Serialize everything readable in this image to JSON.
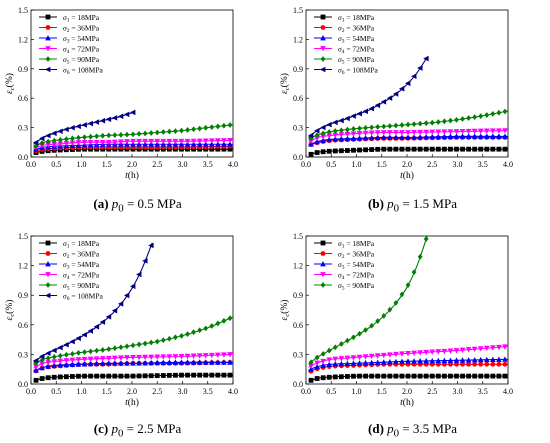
{
  "figure": {
    "captions": [
      {
        "tag": "(a)",
        "param": "p",
        "sub": "0",
        "rest": " = 0.5 MPa"
      },
      {
        "tag": "(b)",
        "param": "p",
        "sub": "0",
        "rest": " = 1.5 MPa"
      },
      {
        "tag": "(c)",
        "param": "p",
        "sub": "0",
        "rest": " = 2.5 MPa"
      },
      {
        "tag": "(d)",
        "param": "p",
        "sub": "0",
        "rest": " = 3.5 MPa"
      }
    ]
  },
  "chart_data": [
    {
      "type": "line",
      "xlabel": "t(h)",
      "ylabel": "εc(%)",
      "xlim": [
        0,
        4
      ],
      "ylim": [
        0,
        1.5
      ],
      "xticks": [
        "0.0",
        "0.5",
        "1.0",
        "1.5",
        "2.0",
        "2.5",
        "3.0",
        "3.5",
        "4.0"
      ],
      "yticks": [
        "0.0",
        "0.3",
        "0.6",
        "0.9",
        "1.2",
        "1.5"
      ],
      "legend": "top-left",
      "series": [
        {
          "name": "σ1 = 18MPa",
          "color": "#000000",
          "marker": "square",
          "x": [
            0.05,
            0.25,
            0.5,
            1,
            1.5,
            2,
            3,
            4
          ],
          "y": [
            0.04,
            0.06,
            0.07,
            0.08,
            0.08,
            0.08,
            0.08,
            0.08
          ]
        },
        {
          "name": "σ2 = 36MPa",
          "color": "#ff0000",
          "marker": "circle",
          "x": [
            0.05,
            0.25,
            0.5,
            1,
            1.5,
            2,
            3,
            4
          ],
          "y": [
            0.06,
            0.08,
            0.09,
            0.1,
            0.1,
            0.1,
            0.1,
            0.11
          ]
        },
        {
          "name": "σ3 = 54MPa",
          "color": "#0000ff",
          "marker": "triangle-up",
          "x": [
            0.05,
            0.25,
            0.5,
            1,
            1.5,
            2,
            3,
            4
          ],
          "y": [
            0.07,
            0.1,
            0.11,
            0.12,
            0.13,
            0.13,
            0.13,
            0.13
          ]
        },
        {
          "name": "σ4 = 72MPa",
          "color": "#ff00ff",
          "marker": "triangle-down",
          "x": [
            0.05,
            0.25,
            0.5,
            1,
            1.5,
            2,
            3,
            4
          ],
          "y": [
            0.09,
            0.12,
            0.13,
            0.15,
            0.15,
            0.16,
            0.16,
            0.17
          ]
        },
        {
          "name": "σ5 = 90MPa",
          "color": "#008000",
          "marker": "diamond",
          "x": [
            0.05,
            0.25,
            0.5,
            1,
            1.5,
            2,
            2.5,
            3,
            3.5,
            4
          ],
          "y": [
            0.1,
            0.15,
            0.17,
            0.2,
            0.22,
            0.23,
            0.25,
            0.27,
            0.3,
            0.33
          ]
        },
        {
          "name": "σ6 = 108MPa",
          "color": "#000080",
          "marker": "triangle-left",
          "x": [
            0.05,
            0.25,
            0.5,
            0.75,
            1,
            1.25,
            1.5,
            1.75,
            2.05
          ],
          "y": [
            0.13,
            0.2,
            0.25,
            0.29,
            0.32,
            0.35,
            0.38,
            0.41,
            0.46
          ]
        }
      ]
    },
    {
      "type": "line",
      "xlabel": "t(h)",
      "ylabel": "εc(%)",
      "xlim": [
        0,
        4
      ],
      "ylim": [
        0,
        1.5
      ],
      "xticks": [
        "0.0",
        "0.5",
        "1.0",
        "1.5",
        "2.0",
        "2.5",
        "3.0",
        "3.5",
        "4.0"
      ],
      "yticks": [
        "0.0",
        "0.3",
        "0.6",
        "0.9",
        "1.2",
        "1.5"
      ],
      "legend": "top-left",
      "series": [
        {
          "name": "σ1 = 18MPa",
          "color": "#000000",
          "marker": "square",
          "x": [
            0.05,
            0.25,
            0.5,
            1,
            1.5,
            2,
            3,
            4
          ],
          "y": [
            0.02,
            0.05,
            0.06,
            0.07,
            0.08,
            0.08,
            0.08,
            0.08
          ]
        },
        {
          "name": "σ2 = 36MPa",
          "color": "#ff0000",
          "marker": "circle",
          "x": [
            0.05,
            0.25,
            0.5,
            1,
            1.5,
            2,
            3,
            4
          ],
          "y": [
            0.12,
            0.15,
            0.17,
            0.18,
            0.19,
            0.19,
            0.2,
            0.2
          ]
        },
        {
          "name": "σ3 = 54MPa",
          "color": "#0000ff",
          "marker": "triangle-up",
          "x": [
            0.05,
            0.25,
            0.5,
            1,
            1.5,
            2,
            3,
            4
          ],
          "y": [
            0.12,
            0.16,
            0.18,
            0.19,
            0.2,
            0.2,
            0.21,
            0.21
          ]
        },
        {
          "name": "σ4 = 72MPa",
          "color": "#ff00ff",
          "marker": "triangle-down",
          "x": [
            0.05,
            0.25,
            0.5,
            1,
            1.5,
            2,
            3,
            4
          ],
          "y": [
            0.15,
            0.2,
            0.22,
            0.24,
            0.25,
            0.25,
            0.26,
            0.27
          ]
        },
        {
          "name": "σ5 = 90MPa",
          "color": "#008000",
          "marker": "diamond",
          "x": [
            0.05,
            0.25,
            0.5,
            1,
            1.5,
            2,
            2.5,
            3,
            3.5,
            4
          ],
          "y": [
            0.18,
            0.23,
            0.26,
            0.29,
            0.31,
            0.33,
            0.35,
            0.38,
            0.42,
            0.47
          ]
        },
        {
          "name": "σ6 = 108MPa",
          "color": "#000080",
          "marker": "triangle-left",
          "x": [
            0.05,
            0.25,
            0.5,
            0.75,
            1,
            1.25,
            1.5,
            1.75,
            2,
            2.2,
            2.4
          ],
          "y": [
            0.2,
            0.28,
            0.34,
            0.38,
            0.43,
            0.48,
            0.55,
            0.63,
            0.74,
            0.86,
            1.02
          ]
        }
      ]
    },
    {
      "type": "line",
      "xlabel": "t(h)",
      "ylabel": "εc(%)",
      "xlim": [
        0,
        4
      ],
      "ylim": [
        0,
        1.5
      ],
      "xticks": [
        "0.0",
        "0.5",
        "1.0",
        "1.5",
        "2.0",
        "2.5",
        "3.0",
        "3.5",
        "4.0"
      ],
      "yticks": [
        "0.0",
        "0.3",
        "0.6",
        "0.9",
        "1.2",
        "1.5"
      ],
      "legend": "top-left",
      "series": [
        {
          "name": "σ1 = 18MPa",
          "color": "#000000",
          "marker": "square",
          "x": [
            0.05,
            0.25,
            0.5,
            1,
            1.5,
            2,
            3,
            4
          ],
          "y": [
            0.03,
            0.06,
            0.07,
            0.08,
            0.08,
            0.08,
            0.09,
            0.09
          ]
        },
        {
          "name": "σ2 = 36MPa",
          "color": "#ff0000",
          "marker": "circle",
          "x": [
            0.05,
            0.25,
            0.5,
            1,
            1.5,
            2,
            3,
            4
          ],
          "y": [
            0.12,
            0.17,
            0.18,
            0.2,
            0.2,
            0.21,
            0.21,
            0.22
          ]
        },
        {
          "name": "σ3 = 54MPa",
          "color": "#0000ff",
          "marker": "triangle-up",
          "x": [
            0.05,
            0.25,
            0.5,
            1,
            1.5,
            2,
            3,
            4
          ],
          "y": [
            0.13,
            0.17,
            0.19,
            0.2,
            0.21,
            0.21,
            0.22,
            0.22
          ]
        },
        {
          "name": "σ4 = 72MPa",
          "color": "#ff00ff",
          "marker": "triangle-down",
          "x": [
            0.05,
            0.25,
            0.5,
            1,
            1.5,
            2,
            3,
            4
          ],
          "y": [
            0.16,
            0.21,
            0.23,
            0.25,
            0.26,
            0.27,
            0.28,
            0.3
          ]
        },
        {
          "name": "σ5 = 90MPa",
          "color": "#008000",
          "marker": "diamond",
          "x": [
            0.05,
            0.25,
            0.5,
            1,
            1.5,
            2,
            2.5,
            3,
            3.5,
            4
          ],
          "y": [
            0.2,
            0.25,
            0.28,
            0.32,
            0.35,
            0.39,
            0.43,
            0.49,
            0.57,
            0.68
          ]
        },
        {
          "name": "σ6 = 108MPa",
          "color": "#000080",
          "marker": "triangle-left",
          "x": [
            0.05,
            0.25,
            0.5,
            0.75,
            1,
            1.25,
            1.5,
            1.75,
            2,
            2.2,
            2.4
          ],
          "y": [
            0.22,
            0.29,
            0.35,
            0.41,
            0.48,
            0.56,
            0.66,
            0.79,
            0.97,
            1.17,
            1.43
          ]
        }
      ]
    },
    {
      "type": "line",
      "xlabel": "t(h)",
      "ylabel": "εc(%)",
      "xlim": [
        0,
        4
      ],
      "ylim": [
        0,
        1.5
      ],
      "xticks": [
        "0.0",
        "0.5",
        "1.0",
        "1.5",
        "2.0",
        "2.5",
        "3.0",
        "3.5",
        "4.0"
      ],
      "yticks": [
        "0.0",
        "0.3",
        "0.6",
        "0.9",
        "1.2",
        "1.5"
      ],
      "legend": "top-left",
      "series": [
        {
          "name": "σ1 = 18MPa",
          "color": "#000000",
          "marker": "square",
          "x": [
            0.05,
            0.25,
            0.5,
            1,
            1.5,
            2,
            3,
            4
          ],
          "y": [
            0.03,
            0.06,
            0.07,
            0.08,
            0.08,
            0.08,
            0.08,
            0.08
          ]
        },
        {
          "name": "σ2 = 36MPa",
          "color": "#ff0000",
          "marker": "circle",
          "x": [
            0.05,
            0.25,
            0.5,
            1,
            1.5,
            2,
            3,
            4
          ],
          "y": [
            0.12,
            0.16,
            0.18,
            0.19,
            0.2,
            0.2,
            0.2,
            0.2
          ]
        },
        {
          "name": "σ3 = 54MPa",
          "color": "#0000ff",
          "marker": "triangle-up",
          "x": [
            0.05,
            0.25,
            0.5,
            1,
            1.5,
            2,
            3,
            4
          ],
          "y": [
            0.14,
            0.18,
            0.2,
            0.21,
            0.22,
            0.23,
            0.24,
            0.25
          ]
        },
        {
          "name": "σ4 = 72MPa",
          "color": "#ff00ff",
          "marker": "triangle-down",
          "x": [
            0.05,
            0.25,
            0.5,
            1,
            1.5,
            2,
            3,
            4
          ],
          "y": [
            0.17,
            0.22,
            0.25,
            0.27,
            0.29,
            0.31,
            0.34,
            0.38
          ]
        },
        {
          "name": "σ5 = 90MPa",
          "color": "#008000",
          "marker": "diamond",
          "x": [
            0.05,
            0.25,
            0.5,
            0.75,
            1,
            1.25,
            1.5,
            1.75,
            2,
            2.2,
            2.4
          ],
          "y": [
            0.2,
            0.28,
            0.35,
            0.42,
            0.49,
            0.57,
            0.67,
            0.8,
            0.98,
            1.2,
            1.5
          ]
        }
      ]
    }
  ]
}
